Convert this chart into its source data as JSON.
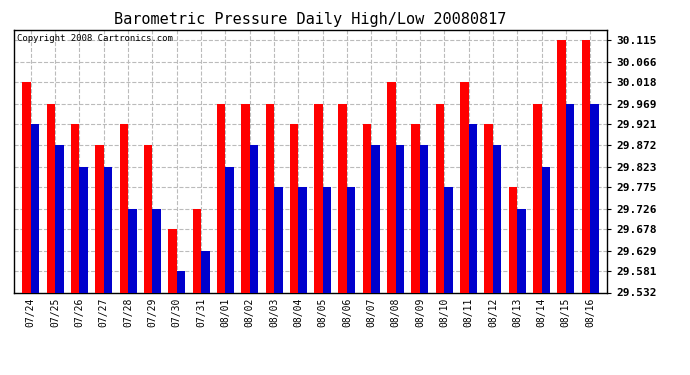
{
  "title": "Barometric Pressure Daily High/Low 20080817",
  "copyright": "Copyright 2008 Cartronics.com",
  "dates": [
    "07/24",
    "07/25",
    "07/26",
    "07/27",
    "07/28",
    "07/29",
    "07/30",
    "07/31",
    "08/01",
    "08/02",
    "08/03",
    "08/04",
    "08/05",
    "08/06",
    "08/07",
    "08/08",
    "08/09",
    "08/10",
    "08/11",
    "08/12",
    "08/13",
    "08/14",
    "08/15",
    "08/16"
  ],
  "highs": [
    30.018,
    29.969,
    29.921,
    29.872,
    29.921,
    29.872,
    29.678,
    29.726,
    29.969,
    29.969,
    29.969,
    29.921,
    29.969,
    29.969,
    29.921,
    30.018,
    29.921,
    29.969,
    30.018,
    29.921,
    29.775,
    29.969,
    30.115,
    30.115
  ],
  "lows": [
    29.921,
    29.872,
    29.823,
    29.823,
    29.726,
    29.726,
    29.581,
    29.629,
    29.823,
    29.872,
    29.775,
    29.775,
    29.775,
    29.775,
    29.872,
    29.872,
    29.872,
    29.775,
    29.921,
    29.872,
    29.726,
    29.823,
    29.969,
    29.969
  ],
  "high_color": "#ff0000",
  "low_color": "#0000cc",
  "bg_color": "#ffffff",
  "grid_color": "#bbbbbb",
  "ymin": 29.532,
  "ymax": 30.139,
  "yticks": [
    29.532,
    29.581,
    29.629,
    29.678,
    29.726,
    29.775,
    29.823,
    29.872,
    29.921,
    29.969,
    30.018,
    30.066,
    30.115
  ],
  "bar_width": 0.35,
  "figwidth": 6.9,
  "figheight": 3.75,
  "dpi": 100
}
